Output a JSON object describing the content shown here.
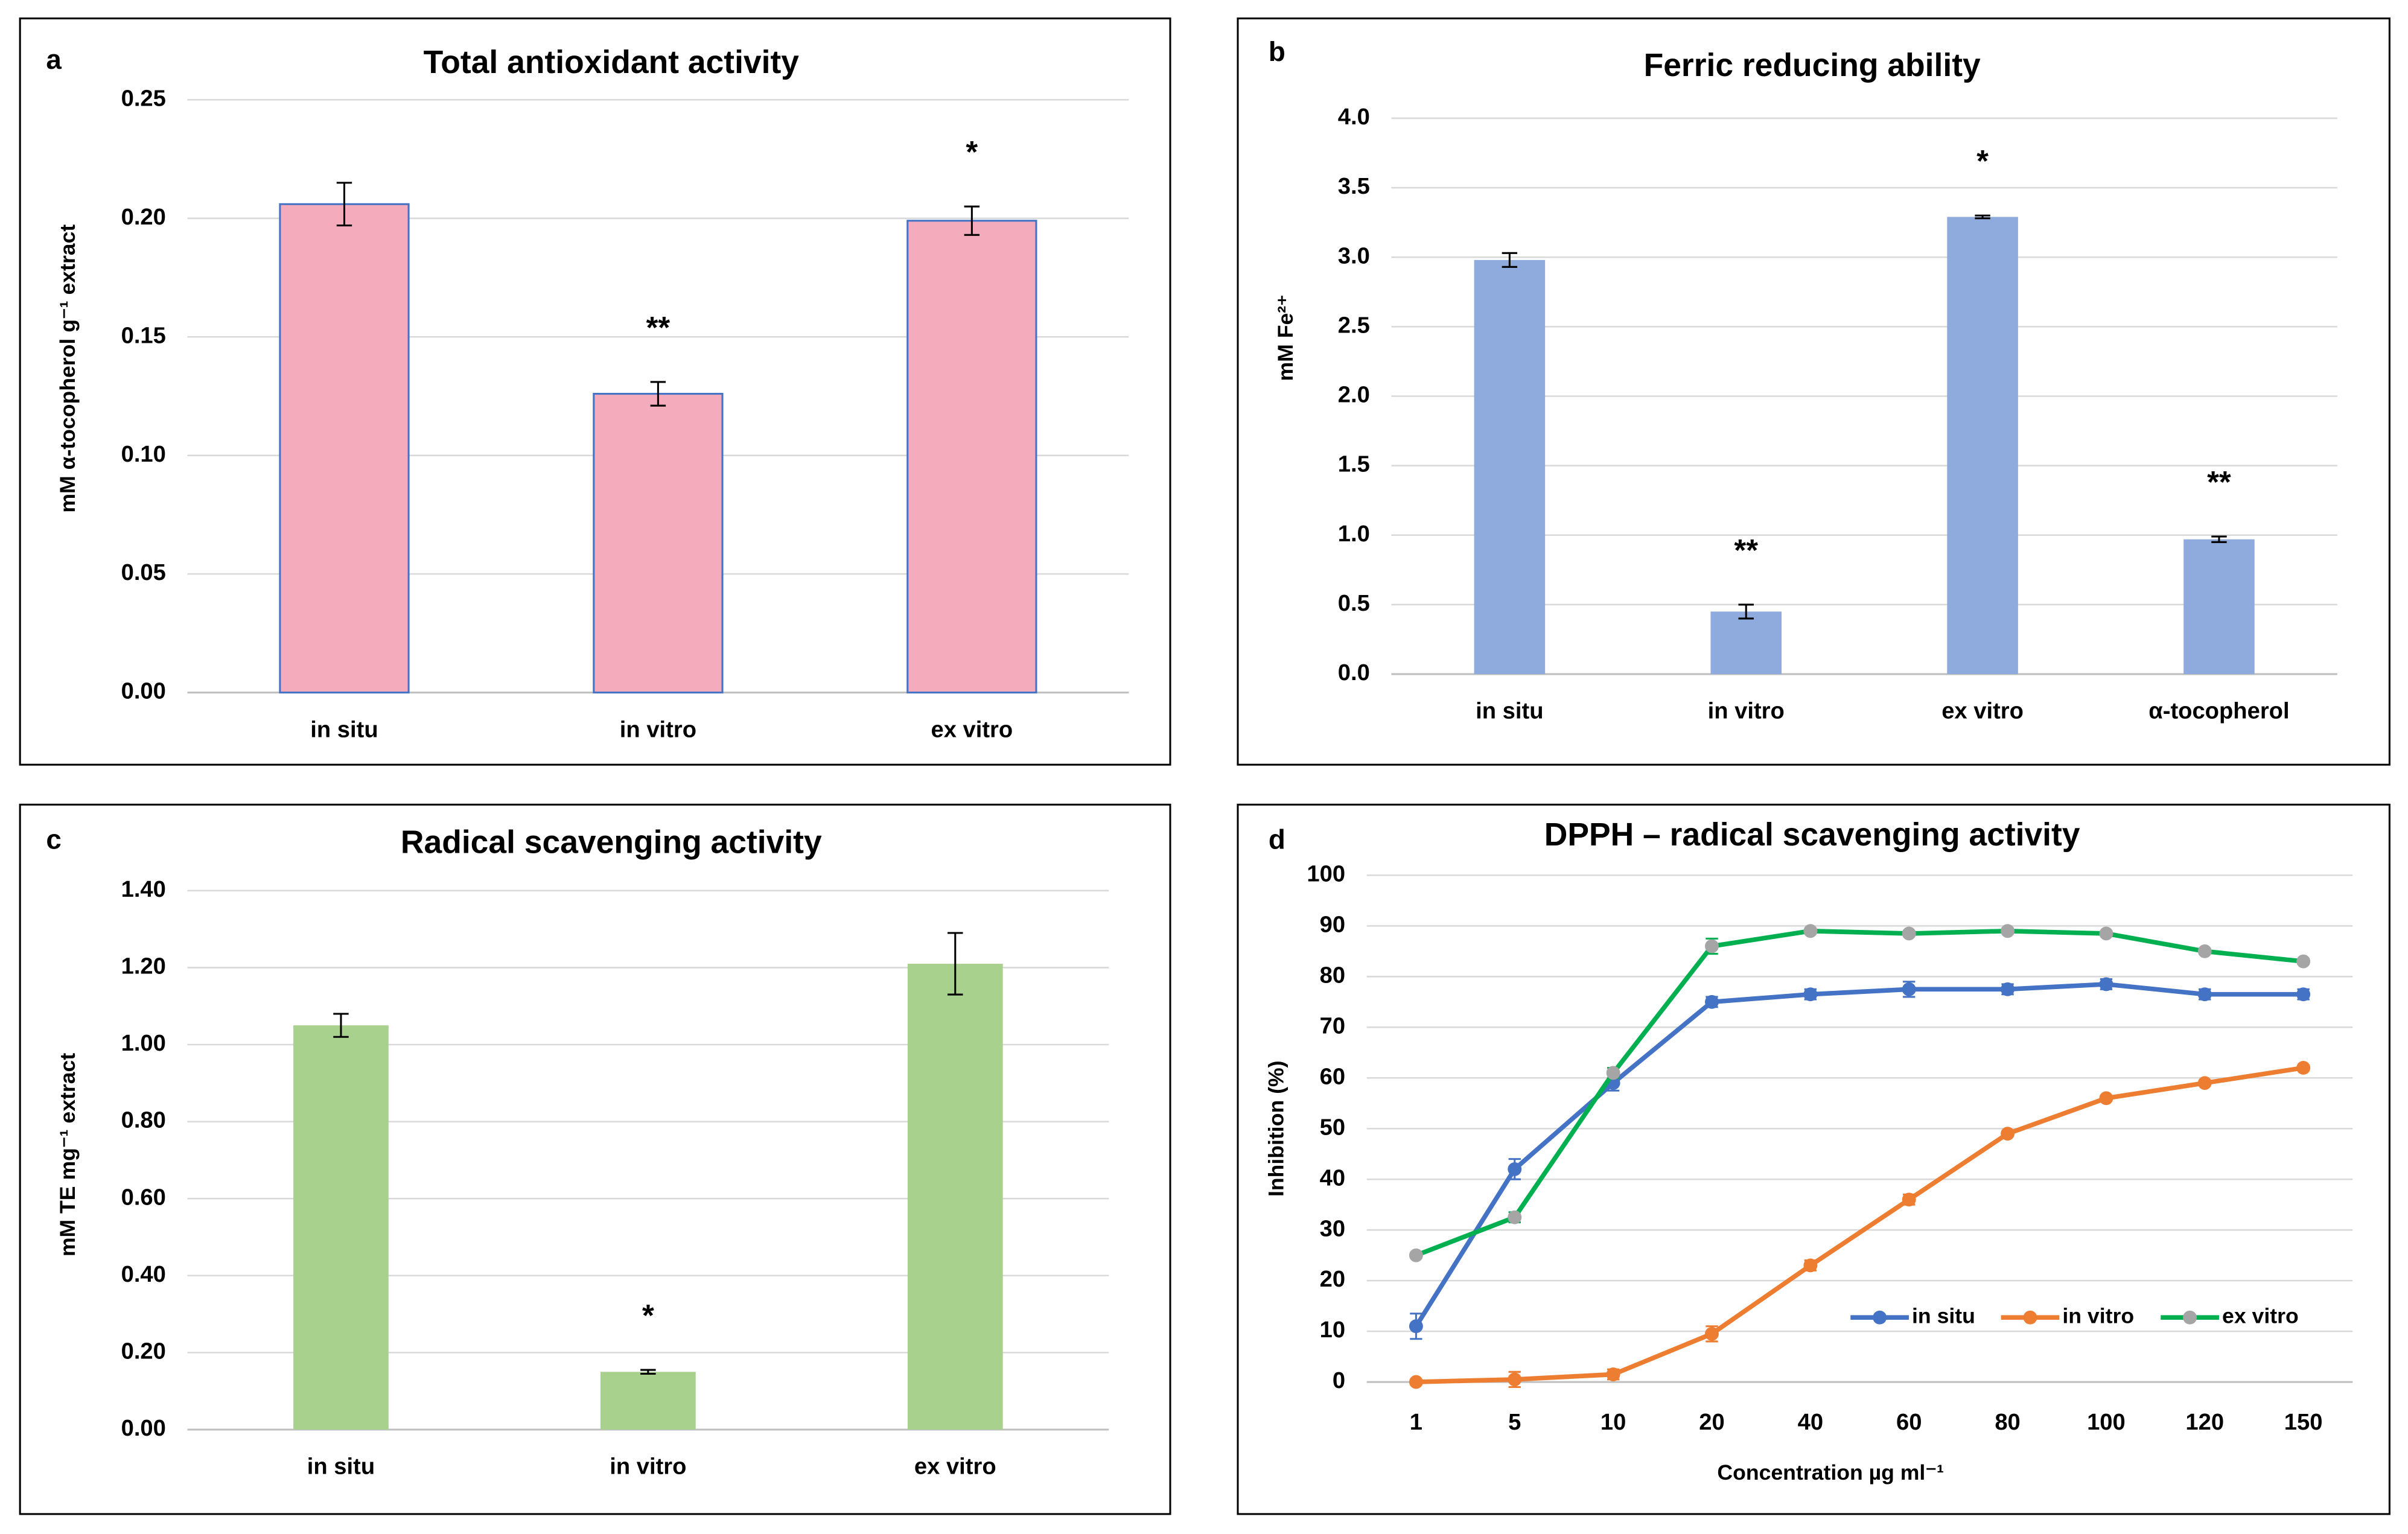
{
  "chart_data": [
    {
      "type": "bar",
      "panel": "a",
      "title": "Total antioxidant activity",
      "y_label": "mM α-tocopherol g⁻¹ extract",
      "categories": [
        "in situ",
        "in vitro",
        "ex vitro"
      ],
      "values": [
        0.206,
        0.126,
        0.199
      ],
      "errors": [
        0.009,
        0.005,
        0.006
      ],
      "significance": [
        null,
        "**",
        "*"
      ],
      "color": "#f4acbc",
      "edge_color": "#4472c4",
      "ylim": [
        0,
        0.25
      ],
      "yticks": [
        {
          "value": 0,
          "label": "0.00"
        },
        0.05,
        {
          "value": 0.1,
          "label": "0.10"
        },
        0.15,
        {
          "value": 0.2,
          "label": "0.20"
        },
        0.25
      ],
      "grid": true
    },
    {
      "type": "bar",
      "panel": "b",
      "title": "Ferric reducing ability",
      "y_label": "mM Fe²⁺",
      "categories": [
        "in situ",
        "in vitro",
        "ex vitro",
        "α-tocopherol"
      ],
      "values": [
        2.98,
        0.45,
        3.29,
        0.97
      ],
      "errors": [
        0.05,
        0.05,
        0.01,
        0.02
      ],
      "significance": [
        null,
        "**",
        "*",
        "**"
      ],
      "color": "#8faadc",
      "ylim": [
        0,
        4
      ],
      "yticks": [
        {
          "value": 0,
          "label": "0.0"
        },
        0.5,
        {
          "value": 1,
          "label": "1.0"
        },
        1.5,
        {
          "value": 2,
          "label": "2.0"
        },
        2.5,
        {
          "value": 3,
          "label": "3.0"
        },
        3.5,
        {
          "value": 4,
          "label": "4.0"
        }
      ],
      "grid": true
    },
    {
      "type": "bar",
      "panel": "c",
      "title": "Radical scavenging activity",
      "y_label": "mM TE mg⁻¹ extract",
      "categories": [
        "in situ",
        "in vitro",
        "ex vitro"
      ],
      "values": [
        1.05,
        0.15,
        1.21
      ],
      "errors": [
        0.03,
        0.005,
        0.08
      ],
      "significance": [
        null,
        "*",
        null
      ],
      "color": "#a9d18e",
      "ylim": [
        0,
        1.4
      ],
      "yticks": [
        {
          "value": 0,
          "label": "0.00"
        },
        {
          "value": 0.2,
          "label": "0.20"
        },
        {
          "value": 0.4,
          "label": "0.40"
        },
        {
          "value": 0.6,
          "label": "0.60"
        },
        {
          "value": 0.8,
          "label": "0.80"
        },
        {
          "value": 1,
          "label": "1.00"
        },
        {
          "value": 1.2,
          "label": "1.20"
        },
        {
          "value": 1.4,
          "label": "1.40"
        }
      ],
      "grid": true
    },
    {
      "type": "line",
      "panel": "d",
      "title": "DPPH – radical scavenging activity",
      "y_label": "Inhibition (%)",
      "x_label": "Concentration µg ml⁻¹",
      "categories": [
        "1",
        "5",
        "10",
        "20",
        "40",
        "60",
        "80",
        "100",
        "120",
        "150"
      ],
      "series": [
        {
          "name": "in situ",
          "color": "#4472c4",
          "values": [
            11,
            42,
            59,
            75,
            76.5,
            77.5,
            77.5,
            78.5,
            76.5,
            76.5
          ],
          "errors": [
            2.5,
            2,
            1.5,
            1,
            1,
            1.5,
            1,
            1,
            1,
            1
          ]
        },
        {
          "name": "in vitro",
          "color": "#ed7d31",
          "values": [
            0,
            0.5,
            1.5,
            9.5,
            23,
            36,
            49,
            56,
            59,
            62
          ],
          "errors": [
            0.5,
            1.5,
            1,
            1.5,
            1,
            1,
            0.5,
            0.5,
            0.5,
            0.5
          ]
        },
        {
          "name": "ex vitro",
          "color": "#00b050",
          "marker_color": "#a5a5a5",
          "values": [
            25,
            32.5,
            61,
            86,
            89,
            88.5,
            89,
            88.5,
            85,
            83
          ],
          "errors": [
            0.5,
            1,
            1,
            1.5,
            0.5,
            0.5,
            0.5,
            0.5,
            0.5,
            0.5
          ]
        }
      ],
      "ylim": [
        0,
        100
      ],
      "yticks": [
        0,
        10,
        20,
        30,
        40,
        50,
        60,
        70,
        80,
        90,
        100
      ],
      "grid": true,
      "legend": "bottom-right"
    }
  ]
}
